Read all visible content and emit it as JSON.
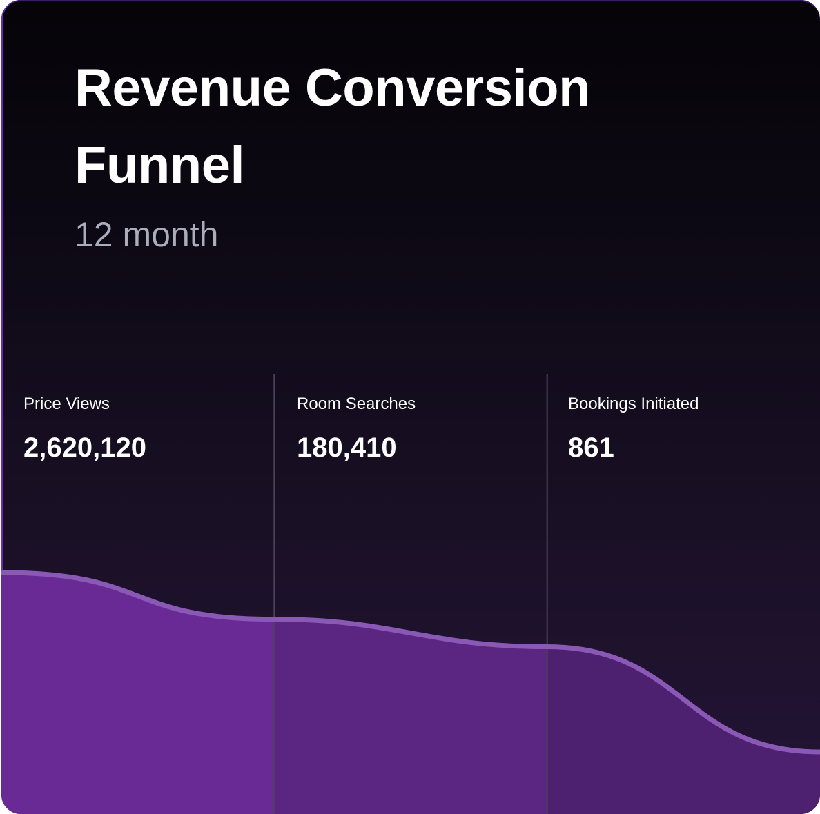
{
  "title": "Revenue Conversion Funnel",
  "period": "12 month",
  "chart_data": {
    "type": "area",
    "title": "Revenue Conversion Funnel",
    "subtitle": "12 month",
    "categories": [
      "Price Views",
      "Room Searches",
      "Bookings Initiated"
    ],
    "values": [
      2620120,
      180410,
      861
    ],
    "value_labels": [
      "2,620,120",
      "180,410",
      "861"
    ],
    "legend": "none",
    "grid": false
  },
  "colors": {
    "fill_stage_1": "#692a95",
    "fill_stage_2": "#5a2682",
    "fill_stage_3": "#4e2170",
    "curve_line": "#8a58b5",
    "divider": "#4a4258"
  }
}
